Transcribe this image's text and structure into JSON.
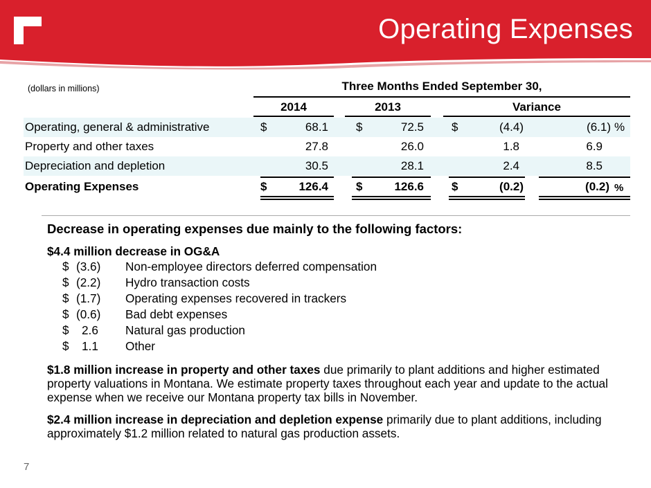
{
  "slide": {
    "title": "Operating Expenses",
    "page_number": "7"
  },
  "table": {
    "units": "(dollars in millions)",
    "period": "Three Months Ended September 30,",
    "columns": [
      "2014",
      "2013",
      "Variance"
    ],
    "rows": [
      {
        "label": "Operating, general & administrative",
        "c2014_sign": "$",
        "c2014": "68.1",
        "c2013_sign": "$",
        "c2013": "72.5",
        "var_sign": "$",
        "var": "(4.4)",
        "pct": "(6.1)",
        "pct_sign": "%"
      },
      {
        "label": "Property and other taxes",
        "c2014": "27.8",
        "c2013": "26.0",
        "var": "1.8",
        "pct": "6.9"
      },
      {
        "label": "Depreciation and depletion",
        "c2014": "30.5",
        "c2013": "28.1",
        "var": "2.4",
        "pct": "8.5"
      },
      {
        "label": "Operating Expenses",
        "c2014_sign": "$",
        "c2014": "126.4",
        "c2013_sign": "$",
        "c2013": "126.6",
        "var_sign": "$",
        "var": "(0.2)",
        "pct": "(0.2)",
        "pct_sign": "%"
      }
    ]
  },
  "body": {
    "heading": "Decrease in operating expenses due mainly to the following factors:",
    "oga_title": "$4.4 million decrease in OG&A",
    "oga_items": [
      {
        "dollar": "$",
        "value": "(3.6)",
        "text": "Non-employee directors deferred compensation"
      },
      {
        "dollar": "$",
        "value": "(2.2)",
        "text": "Hydro transaction costs"
      },
      {
        "dollar": "$",
        "value": "(1.7)",
        "text": "Operating expenses recovered in trackers"
      },
      {
        "dollar": "$",
        "value": "(0.6)",
        "text": "Bad debt expenses"
      },
      {
        "dollar": "$",
        "value": "2.6",
        "text": "Natural gas production"
      },
      {
        "dollar": "$",
        "value": "1.1",
        "text": "Other"
      }
    ],
    "property_bold": "$1.8 million increase in property and other taxes",
    "property_text": " due primarily to plant additions and higher estimated property valuations in Montana.  We estimate property taxes throughout each year and update to the actual expense when we receive our Montana property tax bills in November.",
    "depr_bold": "$2.4 million increase in depreciation and depletion expense",
    "depr_text": " primarily due to plant additions, including approximately $1.2 million related to natural gas production assets."
  },
  "colors": {
    "brand_red": "#d9202c",
    "row_shade": "#eaf6f8"
  }
}
